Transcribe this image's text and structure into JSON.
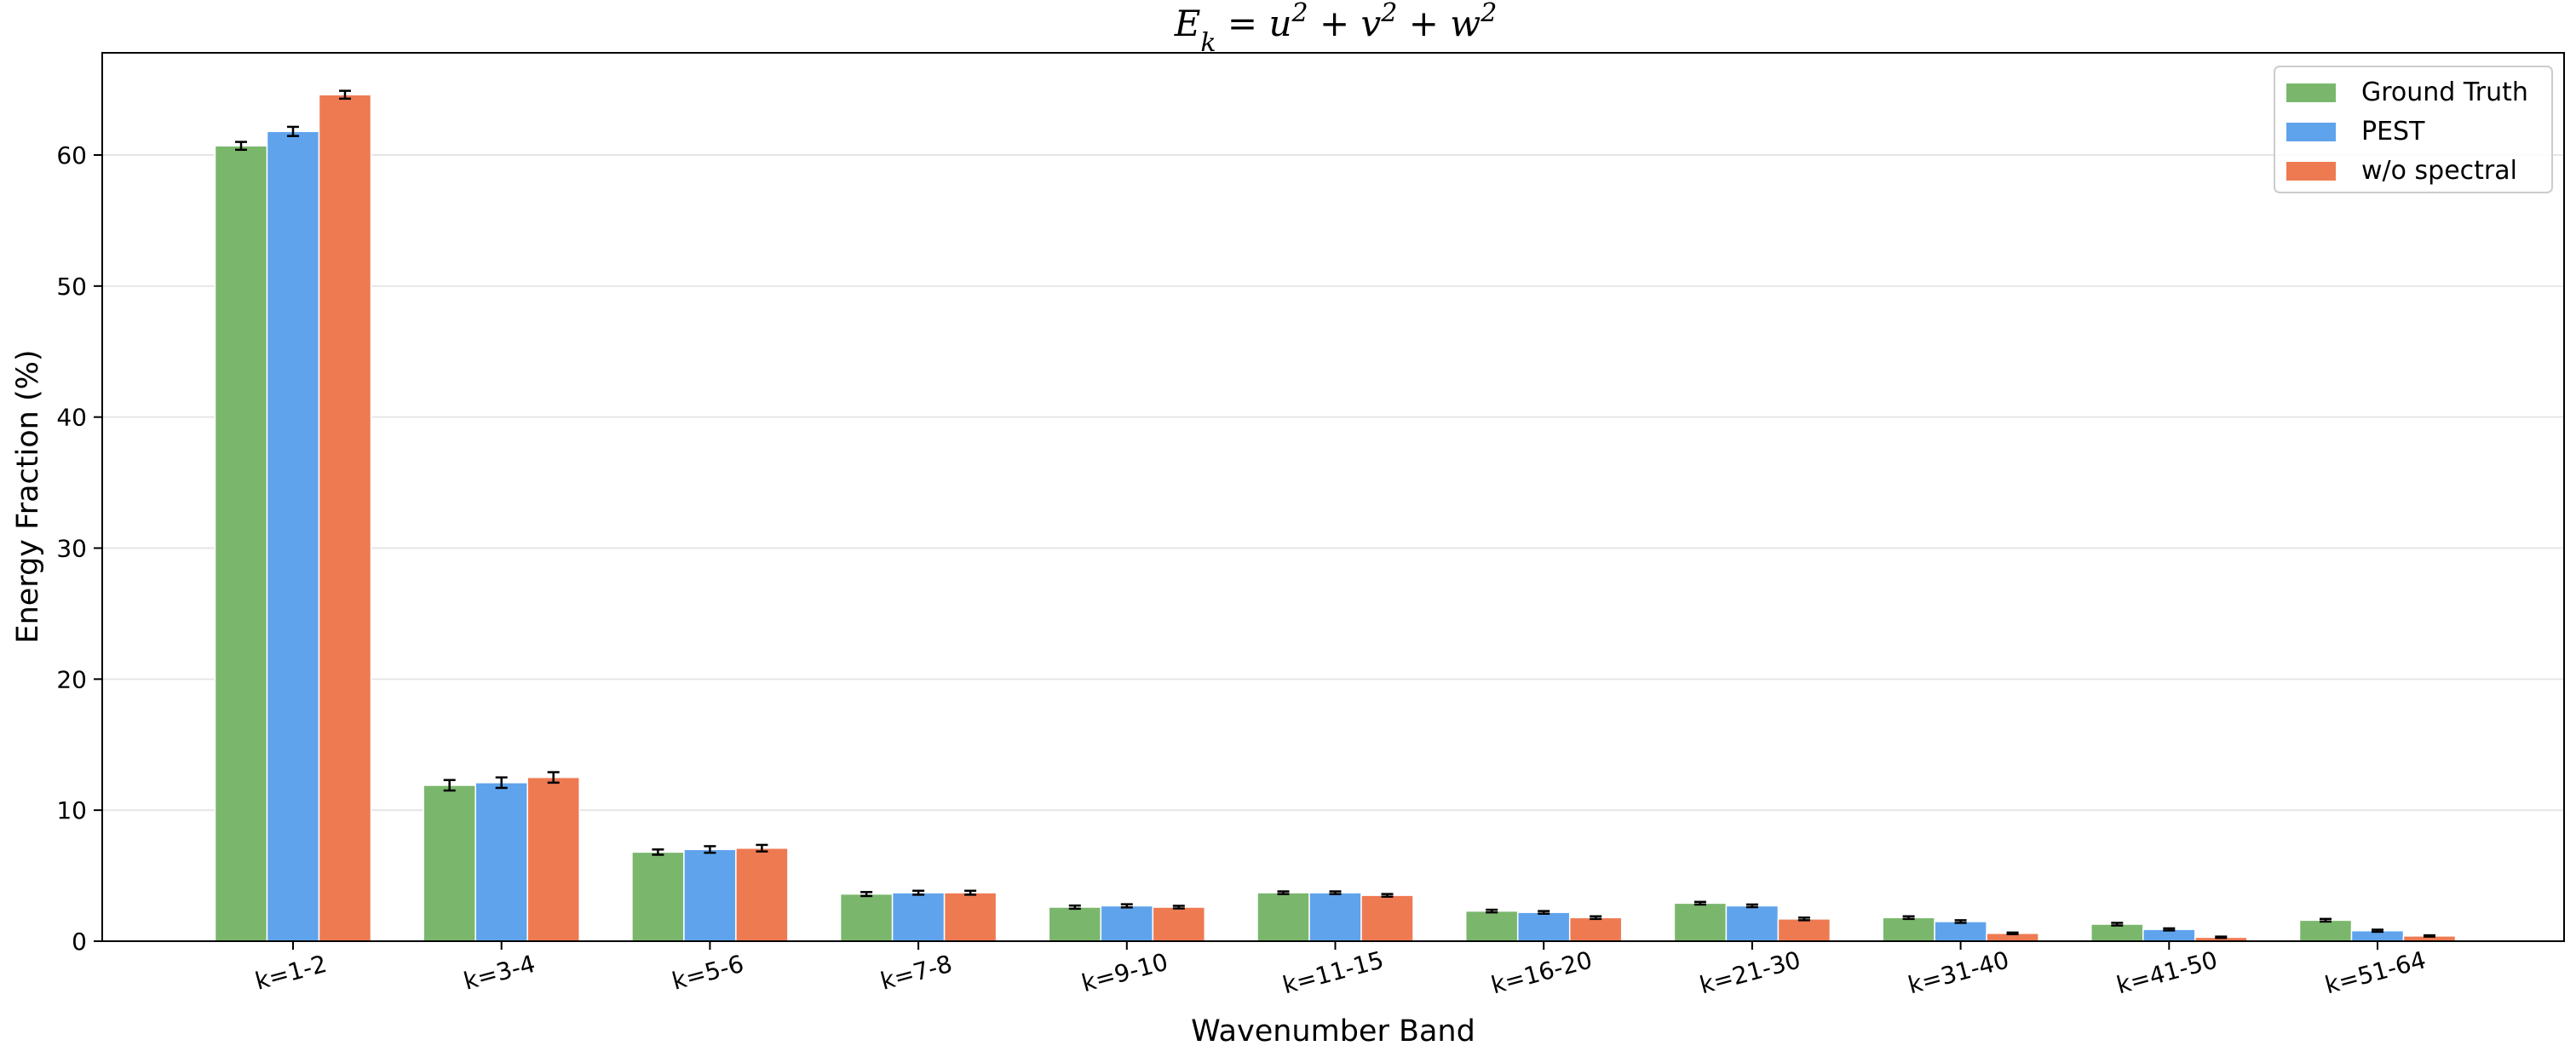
{
  "chart_data": {
    "type": "bar",
    "title": "E_k = u^2 + v^2 + w^2",
    "title_parts": [
      "E",
      "k",
      " = u",
      "2",
      " + v",
      "2",
      " + w",
      "2"
    ],
    "xlabel": "Wavenumber Band",
    "ylabel": "Energy Fraction (%)",
    "ylim": [
      0,
      67.8
    ],
    "yticks": [
      0,
      10,
      20,
      30,
      40,
      50,
      60
    ],
    "grid": "horizontal",
    "legend_position": "top-right",
    "categories": [
      "k=1-2",
      "k=3-4",
      "k=5-6",
      "k=7-8",
      "k=9-10",
      "k=11-15",
      "k=16-20",
      "k=21-30",
      "k=31-40",
      "k=41-50",
      "k=51-64"
    ],
    "series": [
      {
        "name": "Ground Truth",
        "color": "#7ab76c",
        "values": [
          60.7,
          11.9,
          6.8,
          3.6,
          2.6,
          3.7,
          2.3,
          2.9,
          1.8,
          1.3,
          1.6
        ],
        "errors": [
          0.3,
          0.4,
          0.2,
          0.15,
          0.12,
          0.1,
          0.1,
          0.1,
          0.1,
          0.1,
          0.1
        ]
      },
      {
        "name": "PEST",
        "color": "#5fa3ec",
        "values": [
          61.8,
          12.1,
          7.0,
          3.7,
          2.7,
          3.7,
          2.2,
          2.7,
          1.5,
          0.9,
          0.8
        ],
        "errors": [
          0.35,
          0.4,
          0.25,
          0.15,
          0.12,
          0.1,
          0.1,
          0.1,
          0.1,
          0.08,
          0.08
        ]
      },
      {
        "name": "w/o spectral",
        "color": "#ee7a52",
        "values": [
          64.6,
          12.5,
          7.1,
          3.7,
          2.6,
          3.5,
          1.8,
          1.7,
          0.6,
          0.3,
          0.4
        ],
        "errors": [
          0.3,
          0.4,
          0.25,
          0.15,
          0.1,
          0.1,
          0.1,
          0.1,
          0.06,
          0.05,
          0.05
        ]
      }
    ]
  }
}
